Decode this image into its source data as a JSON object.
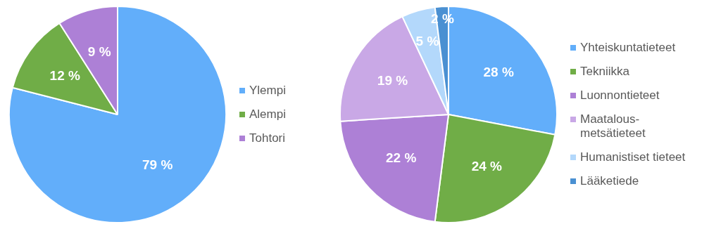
{
  "chart_data": [
    {
      "type": "pie",
      "categories": [
        "Ylempi",
        "Alempi",
        "Tohtori"
      ],
      "values": [
        79,
        12,
        9
      ],
      "colors": [
        "#62aefa",
        "#70ad47",
        "#ad80d6"
      ],
      "value_labels": [
        "79 %",
        "12 %",
        "9 %"
      ],
      "legend": "right"
    },
    {
      "type": "pie",
      "categories": [
        "Yhteiskuntatieteet",
        "Tekniikka",
        "Luonnontieteet",
        "Maatalous-metsätieteet",
        "Humanistiset tieteet",
        "Lääketiede"
      ],
      "values": [
        28,
        24,
        22,
        19,
        5,
        2
      ],
      "colors": [
        "#62aefa",
        "#70ad47",
        "#ad80d6",
        "#c9a8e6",
        "#b3d8fb",
        "#4a90d2"
      ],
      "value_labels": [
        "28 %",
        "24 %",
        "22 %",
        "19 %",
        "5 %",
        "2 %"
      ],
      "legend": "right"
    }
  ]
}
